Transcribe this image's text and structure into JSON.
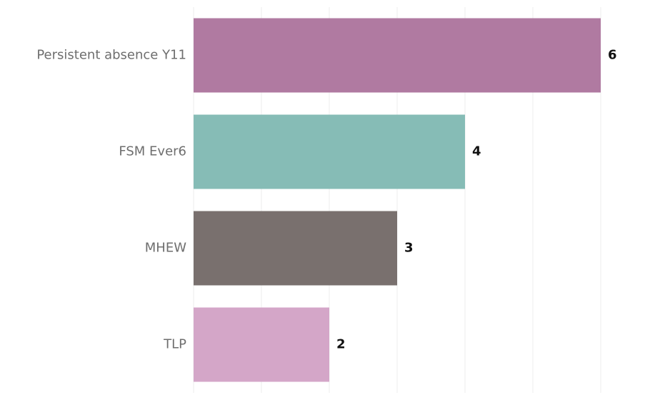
{
  "chart_data": {
    "type": "bar",
    "orientation": "horizontal",
    "categories": [
      "Persistent absence Y11",
      "FSM Ever6",
      "MHEW",
      "TLP"
    ],
    "values": [
      6,
      4,
      3,
      2
    ],
    "colors": [
      "#b07aa1",
      "#86bcb6",
      "#79706e",
      "#d4a6c8"
    ],
    "xlim": [
      0,
      6
    ],
    "xticks": [
      0,
      1,
      2,
      3,
      4,
      5,
      6
    ],
    "grid": true
  }
}
